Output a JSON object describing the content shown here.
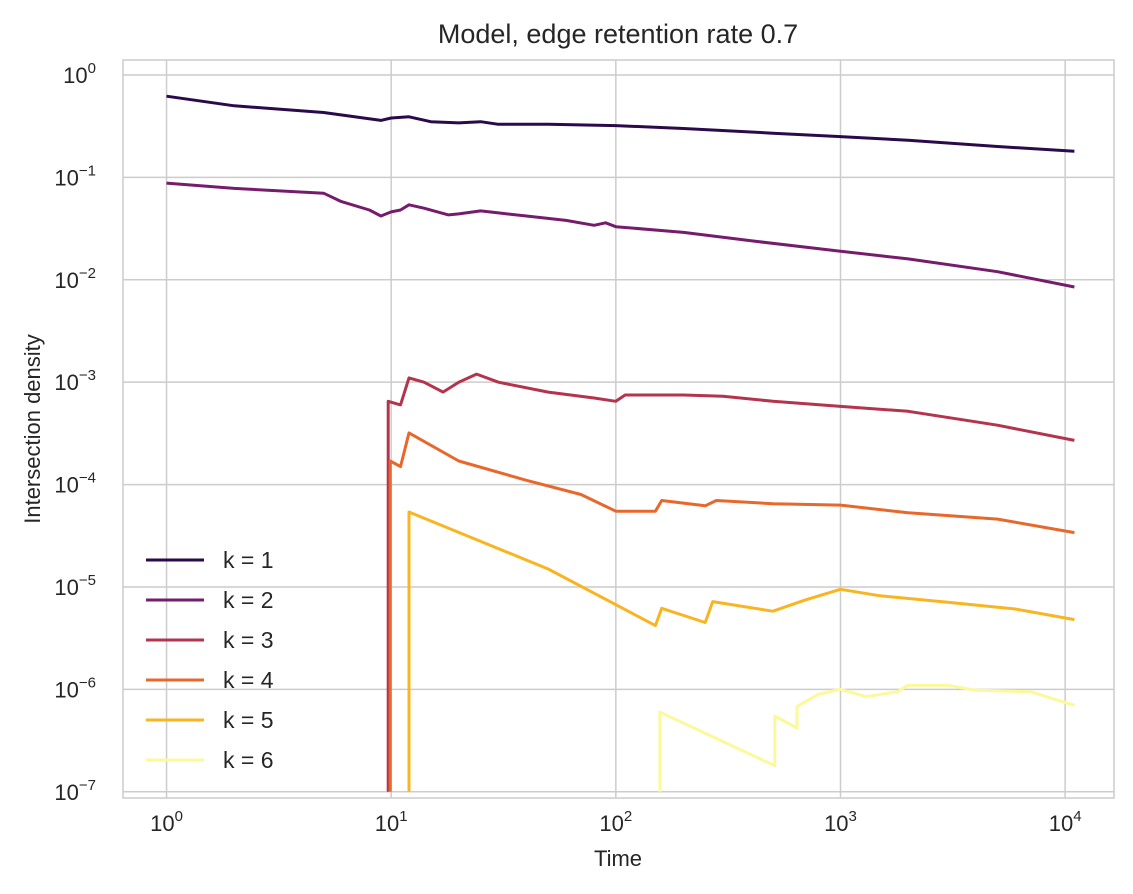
{
  "chart_data": {
    "type": "line",
    "title": "Model, edge retention rate 0.7",
    "xlabel": "Time",
    "ylabel": "Intersection density",
    "xscale": "log",
    "yscale": "log",
    "xlim": [
      0.64,
      16500
    ],
    "ylim": [
      8.7e-08,
      1.4
    ],
    "grid": true,
    "legend_position": "lower-left",
    "x_ticks": [
      {
        "value": 1,
        "base": "10",
        "exp": "0"
      },
      {
        "value": 10,
        "base": "10",
        "exp": "1"
      },
      {
        "value": 100,
        "base": "10",
        "exp": "2"
      },
      {
        "value": 1000,
        "base": "10",
        "exp": "3"
      },
      {
        "value": 10000,
        "base": "10",
        "exp": "4"
      }
    ],
    "y_ticks": [
      {
        "value": 1,
        "base": "10",
        "exp": "0"
      },
      {
        "value": 0.1,
        "base": "10",
        "exp": "−1"
      },
      {
        "value": 0.01,
        "base": "10",
        "exp": "−2"
      },
      {
        "value": 0.001,
        "base": "10",
        "exp": "−3"
      },
      {
        "value": 0.0001,
        "base": "10",
        "exp": "−4"
      },
      {
        "value": 1e-05,
        "base": "10",
        "exp": "−5"
      },
      {
        "value": 1e-06,
        "base": "10",
        "exp": "−6"
      },
      {
        "value": 1e-07,
        "base": "10",
        "exp": "−7"
      }
    ],
    "series": [
      {
        "name": "k = 1",
        "color": "#2a0a4a",
        "points": [
          [
            1,
            0.62
          ],
          [
            2,
            0.5
          ],
          [
            5,
            0.43
          ],
          [
            9,
            0.36
          ],
          [
            10,
            0.38
          ],
          [
            12,
            0.39
          ],
          [
            15,
            0.35
          ],
          [
            20,
            0.34
          ],
          [
            25,
            0.35
          ],
          [
            30,
            0.33
          ],
          [
            50,
            0.33
          ],
          [
            100,
            0.32
          ],
          [
            200,
            0.3
          ],
          [
            500,
            0.27
          ],
          [
            1000,
            0.25
          ],
          [
            2000,
            0.23
          ],
          [
            5000,
            0.2
          ],
          [
            11000,
            0.18
          ]
        ]
      },
      {
        "name": "k = 2",
        "color": "#761c6c",
        "points": [
          [
            1,
            0.088
          ],
          [
            2,
            0.078
          ],
          [
            5,
            0.07
          ],
          [
            6,
            0.058
          ],
          [
            8,
            0.048
          ],
          [
            9,
            0.042
          ],
          [
            10,
            0.046
          ],
          [
            11,
            0.048
          ],
          [
            12,
            0.054
          ],
          [
            14,
            0.05
          ],
          [
            18,
            0.043
          ],
          [
            20,
            0.044
          ],
          [
            25,
            0.047
          ],
          [
            30,
            0.045
          ],
          [
            40,
            0.042
          ],
          [
            60,
            0.038
          ],
          [
            80,
            0.034
          ],
          [
            90,
            0.036
          ],
          [
            100,
            0.033
          ],
          [
            200,
            0.029
          ],
          [
            400,
            0.024
          ],
          [
            1000,
            0.019
          ],
          [
            2000,
            0.016
          ],
          [
            5000,
            0.012
          ],
          [
            11000,
            0.0085
          ]
        ]
      },
      {
        "name": "k = 3",
        "color": "#b4334d",
        "points": [
          [
            9.7,
            1e-07
          ],
          [
            9.7,
            0.00065
          ],
          [
            11,
            0.0006
          ],
          [
            12,
            0.0011
          ],
          [
            14,
            0.001
          ],
          [
            17,
            0.0008
          ],
          [
            20,
            0.001
          ],
          [
            24,
            0.0012
          ],
          [
            30,
            0.001
          ],
          [
            50,
            0.0008
          ],
          [
            80,
            0.0007
          ],
          [
            100,
            0.00065
          ],
          [
            110,
            0.00075
          ],
          [
            200,
            0.00075
          ],
          [
            300,
            0.00073
          ],
          [
            500,
            0.00065
          ],
          [
            1000,
            0.00058
          ],
          [
            2000,
            0.00052
          ],
          [
            5000,
            0.00038
          ],
          [
            11000,
            0.00027
          ]
        ]
      },
      {
        "name": "k = 4",
        "color": "#e8682b",
        "points": [
          [
            9.9,
            1e-07
          ],
          [
            9.9,
            0.00017
          ],
          [
            11,
            0.00015
          ],
          [
            12,
            0.00032
          ],
          [
            20,
            0.00017
          ],
          [
            40,
            0.00011
          ],
          [
            70,
            8e-05
          ],
          [
            100,
            5.5e-05
          ],
          [
            150,
            5.5e-05
          ],
          [
            160,
            7e-05
          ],
          [
            250,
            6.2e-05
          ],
          [
            280,
            7e-05
          ],
          [
            500,
            6.5e-05
          ],
          [
            1000,
            6.3e-05
          ],
          [
            2000,
            5.3e-05
          ],
          [
            5000,
            4.6e-05
          ],
          [
            11000,
            3.4e-05
          ]
        ]
      },
      {
        "name": "k = 5",
        "color": "#f9b521",
        "points": [
          [
            12,
            1e-07
          ],
          [
            12,
            5.4e-05
          ],
          [
            50,
            1.5e-05
          ],
          [
            150,
            4.2e-06
          ],
          [
            160,
            6.2e-06
          ],
          [
            250,
            4.5e-06
          ],
          [
            270,
            7.2e-06
          ],
          [
            500,
            5.8e-06
          ],
          [
            700,
            7.5e-06
          ],
          [
            1000,
            9.5e-06
          ],
          [
            1500,
            8.2e-06
          ],
          [
            3000,
            7.1e-06
          ],
          [
            6000,
            6.1e-06
          ],
          [
            11000,
            4.8e-06
          ]
        ]
      },
      {
        "name": "k = 6",
        "color": "#fbf99a",
        "points": [
          [
            157,
            1e-07
          ],
          [
            157,
            6e-07
          ],
          [
            510,
            1.8e-07
          ],
          [
            510,
            5.5e-07
          ],
          [
            640,
            4.2e-07
          ],
          [
            640,
            6.8e-07
          ],
          [
            800,
            9e-07
          ],
          [
            1000,
            1e-06
          ],
          [
            1300,
            8.5e-07
          ],
          [
            1800,
            9.5e-07
          ],
          [
            2000,
            1.1e-06
          ],
          [
            3000,
            1.1e-06
          ],
          [
            4000,
            9.8e-07
          ],
          [
            7000,
            9.5e-07
          ],
          [
            11000,
            7e-07
          ]
        ]
      }
    ]
  }
}
